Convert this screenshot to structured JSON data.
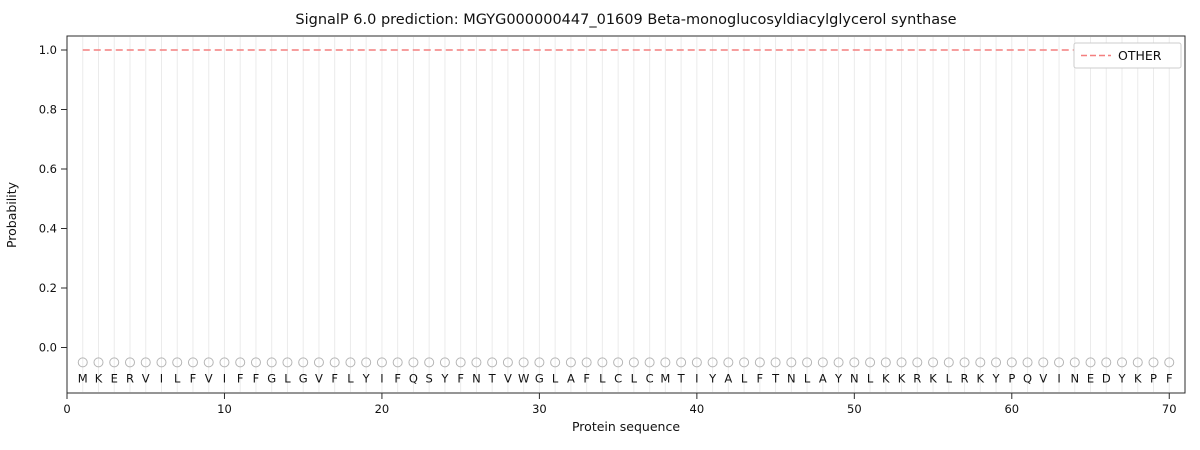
{
  "chart_data": {
    "type": "line",
    "title": "SignalP 6.0 prediction: MGYG000000447_01609 Beta-monoglucosyldiacylglycerol synthase",
    "xlabel": "Protein sequence",
    "ylabel": "Probability",
    "xlim": [
      0,
      71
    ],
    "ylim": [
      -0.15,
      1.05
    ],
    "x_tick_values": [
      0,
      10,
      20,
      30,
      40,
      50,
      60,
      70
    ],
    "x_tick_labels": [
      "0",
      "10",
      "20",
      "30",
      "40",
      "50",
      "60",
      "70"
    ],
    "y_tick_values": [
      0.0,
      0.2,
      0.4,
      0.6,
      0.8,
      1.0
    ],
    "y_tick_labels": [
      "0.0",
      "0.2",
      "0.4",
      "0.6",
      "0.8",
      "1.0"
    ],
    "grid": "vertical-per-residue",
    "legend": {
      "position": "upper-right",
      "entries": [
        "OTHER"
      ]
    },
    "series": [
      {
        "name": "OTHER",
        "style": "dashed",
        "color": "#f47f7f",
        "constant_value": 1.0,
        "x_start": 1,
        "x_end": 70
      }
    ],
    "sequence": "MKERVILFVIFFGLGVFLYIFQSYFNTVWGLAFLCLCMTIYALFTNLAYNLKKRKLRKYPQVINEDYKPF",
    "sequence_length": 70,
    "marker_y": -0.05,
    "letter_y": -0.105,
    "colors": {
      "other_line": "#f47f7f",
      "gridline": "#ebebeb",
      "marker_outline": "#b5b5b5",
      "letter": "#1a1a1a",
      "plot_border": "#2b2b2b",
      "legend_border": "#cccccc"
    }
  }
}
